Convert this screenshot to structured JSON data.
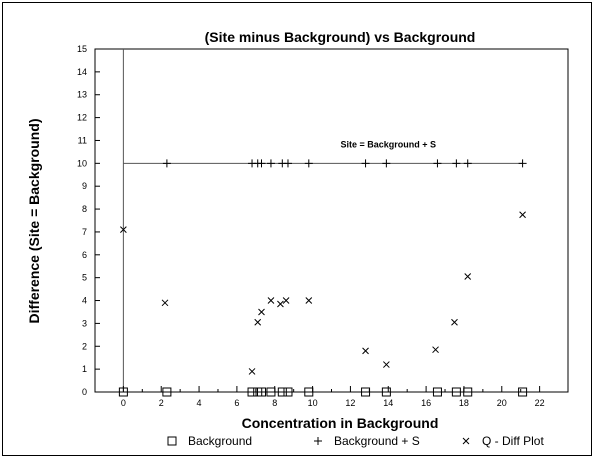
{
  "chart_data": {
    "type": "scatter",
    "title": "(Site minus Background) vs Background",
    "xlabel": "Concentration in Background",
    "ylabel": "Difference (Site = Background)",
    "xlim": [
      -1.5,
      23.5
    ],
    "ylim": [
      0,
      15
    ],
    "x_ticks": [
      0,
      2,
      4,
      6,
      8,
      10,
      12,
      14,
      16,
      18,
      20,
      22
    ],
    "y_ticks": [
      0,
      1,
      2,
      3,
      4,
      5,
      6,
      7,
      8,
      9,
      10,
      11,
      12,
      13,
      14,
      15
    ],
    "grid": false,
    "legend_position": "bottom",
    "reference_line": {
      "y": 10,
      "label": "Site  = Background + S"
    },
    "series": [
      {
        "name": "Background",
        "marker": "square",
        "points": [
          [
            0,
            0
          ],
          [
            2.3,
            0
          ],
          [
            6.8,
            0
          ],
          [
            7.1,
            0
          ],
          [
            7.3,
            0
          ],
          [
            7.8,
            0
          ],
          [
            8.4,
            0
          ],
          [
            8.7,
            0
          ],
          [
            9.8,
            0
          ],
          [
            12.8,
            0
          ],
          [
            13.9,
            0
          ],
          [
            16.6,
            0
          ],
          [
            17.6,
            0
          ],
          [
            18.2,
            0
          ],
          [
            21.1,
            0
          ]
        ]
      },
      {
        "name": "Background  +  S",
        "marker": "plus",
        "points": [
          [
            2.3,
            10
          ],
          [
            6.8,
            10
          ],
          [
            7.1,
            10
          ],
          [
            7.3,
            10
          ],
          [
            7.8,
            10
          ],
          [
            8.4,
            10
          ],
          [
            8.7,
            10
          ],
          [
            9.8,
            10
          ],
          [
            12.8,
            10
          ],
          [
            13.9,
            10
          ],
          [
            16.6,
            10
          ],
          [
            17.6,
            10
          ],
          [
            18.2,
            10
          ],
          [
            21.1,
            10
          ]
        ]
      },
      {
        "name": "Q - Diff Plot",
        "marker": "x",
        "points": [
          [
            0,
            7.1
          ],
          [
            2.2,
            3.9
          ],
          [
            6.8,
            0.9
          ],
          [
            7.1,
            3.05
          ],
          [
            7.3,
            3.5
          ],
          [
            7.8,
            4.0
          ],
          [
            8.3,
            3.85
          ],
          [
            8.6,
            4.0
          ],
          [
            9.8,
            4.0
          ],
          [
            12.8,
            1.8
          ],
          [
            13.9,
            1.2
          ],
          [
            16.5,
            1.85
          ],
          [
            17.5,
            3.05
          ],
          [
            18.2,
            5.05
          ],
          [
            21.1,
            7.75
          ]
        ]
      }
    ]
  }
}
